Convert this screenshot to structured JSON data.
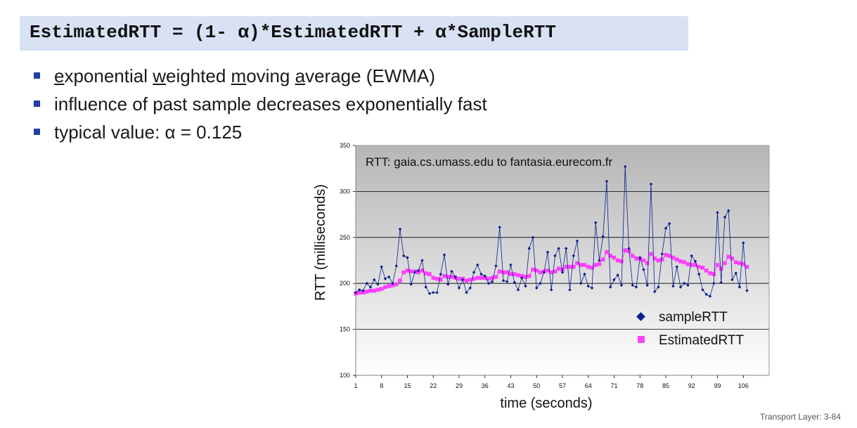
{
  "formula": {
    "text": "EstimatedRTT = (1- α)*EstimatedRTT + α*SampleRTT"
  },
  "bullets": [
    {
      "parts": [
        {
          "t": "e",
          "u": true
        },
        {
          "t": "xponential ",
          "u": false
        },
        {
          "t": "w",
          "u": true
        },
        {
          "t": "eighted ",
          "u": false
        },
        {
          "t": "m",
          "u": true
        },
        {
          "t": "oving ",
          "u": false
        },
        {
          "t": "a",
          "u": true
        },
        {
          "t": "verage (EWMA)",
          "u": false
        }
      ]
    },
    {
      "parts": [
        {
          "t": "influence of past sample decreases exponentially fast",
          "u": false
        }
      ]
    },
    {
      "parts": [
        {
          "t": "typical value: α = 0.125",
          "u": false
        }
      ]
    }
  ],
  "footer": "Transport Layer: 3-84",
  "colors": {
    "formula_bg": "#d9e2f5",
    "bullet": "#1f3fa6",
    "sample": "#0a1f8f",
    "estimated": "#ff40ff"
  },
  "chart_data": {
    "type": "line",
    "title": "RTT: gaia.cs.umass.edu to fantasia.eurecom.fr",
    "xlabel": "time (seconds)",
    "ylabel": "RTT (milliseconds)",
    "ylim": [
      100,
      350
    ],
    "yticks": [
      100,
      150,
      200,
      250,
      300,
      350
    ],
    "xlim": [
      1,
      113
    ],
    "xtick_labels": [
      "1",
      "8",
      "15",
      "22",
      "29",
      "36",
      "43",
      "50",
      "57",
      "64",
      "71",
      "78",
      "85",
      "92",
      "99",
      "106"
    ],
    "legend_position": "lower-right",
    "series": [
      {
        "name": "sampleRTT",
        "marker": "diamond",
        "values": [
          190,
          193,
          192,
          200,
          196,
          204,
          199,
          218,
          205,
          207,
          200,
          219,
          259,
          230,
          228,
          199,
          212,
          214,
          225,
          196,
          189,
          190,
          190,
          210,
          231,
          199,
          213,
          207,
          195,
          204,
          190,
          195,
          212,
          220,
          210,
          208,
          200,
          202,
          219,
          261,
          203,
          202,
          220,
          201,
          193,
          206,
          197,
          238,
          250,
          195,
          200,
          212,
          234,
          193,
          230,
          238,
          212,
          238,
          193,
          230,
          246,
          200,
          210,
          197,
          195,
          266,
          225,
          251,
          311,
          196,
          204,
          209,
          198,
          327,
          238,
          198,
          196,
          228,
          215,
          198,
          308,
          191,
          196,
          232,
          260,
          265,
          197,
          218,
          196,
          200,
          198,
          230,
          224,
          210,
          193,
          188,
          186,
          200,
          277,
          201,
          272,
          279,
          204,
          211,
          196,
          244,
          192
        ]
      },
      {
        "name": "EstimatedRTT",
        "marker": "square",
        "values": [
          189,
          190,
          190,
          191,
          192,
          192,
          193,
          194,
          196,
          197,
          198,
          199,
          203,
          212,
          214,
          213,
          213,
          212,
          214,
          211,
          210,
          206,
          205,
          204,
          208,
          207,
          207,
          206,
          205,
          205,
          203,
          204,
          205,
          206,
          206,
          206,
          205,
          206,
          207,
          213,
          212,
          212,
          210,
          210,
          209,
          208,
          207,
          208,
          215,
          214,
          212,
          213,
          214,
          212,
          213,
          216,
          215,
          218,
          218,
          218,
          222,
          220,
          220,
          218,
          217,
          220,
          221,
          226,
          234,
          230,
          228,
          225,
          224,
          236,
          235,
          230,
          227,
          227,
          225,
          222,
          232,
          227,
          225,
          226,
          231,
          230,
          228,
          226,
          224,
          223,
          221,
          220,
          220,
          218,
          217,
          214,
          211,
          210,
          220,
          216,
          222,
          229,
          227,
          223,
          222,
          221,
          218
        ]
      }
    ]
  }
}
